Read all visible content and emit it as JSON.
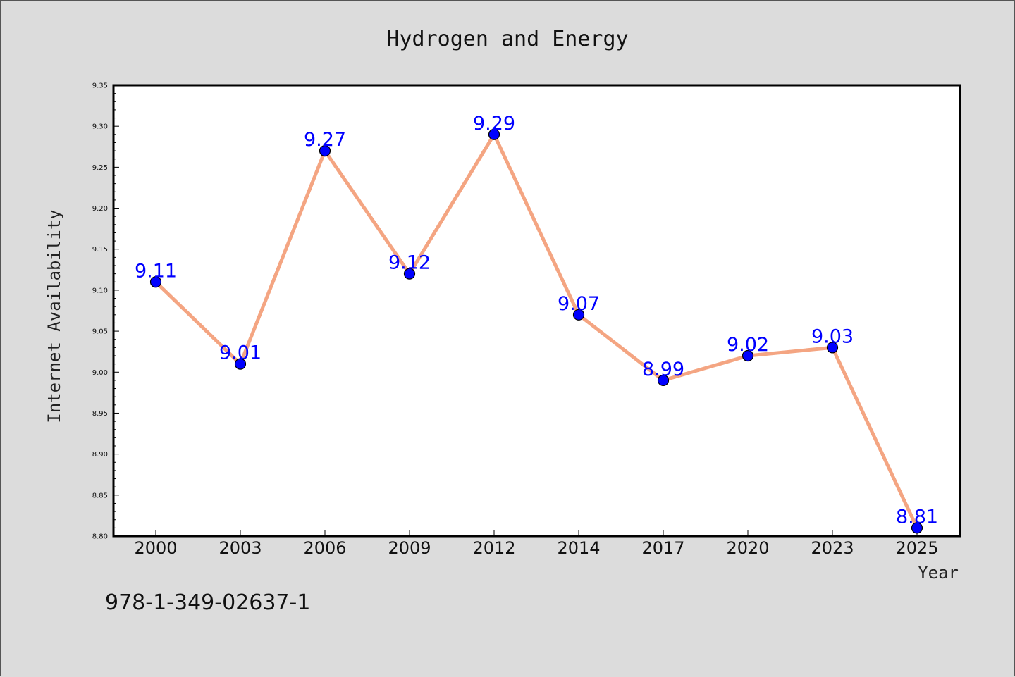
{
  "chart_data": {
    "type": "line",
    "title": "Hydrogen and Energy",
    "xlabel": "Year",
    "ylabel": "Internet Availability",
    "categories": [
      "2000",
      "2003",
      "2006",
      "2009",
      "2012",
      "2014",
      "2017",
      "2020",
      "2023",
      "2025"
    ],
    "series": [
      {
        "values": [
          9.11,
          9.01,
          9.27,
          9.12,
          9.29,
          9.07,
          8.99,
          9.02,
          9.03,
          8.81
        ],
        "data_labels": [
          "9.11",
          "9.01",
          "9.27",
          "9.12",
          "9.29",
          "9.07",
          "8.99",
          "9.02",
          "9.03",
          "8.81"
        ]
      }
    ],
    "ylim": [
      8.8,
      9.35
    ],
    "yticks": [
      "8.80",
      "8.85",
      "8.90",
      "8.95",
      "9.00",
      "9.05",
      "9.10",
      "9.15",
      "9.20",
      "9.25",
      "9.30",
      "9.35"
    ],
    "grid": false,
    "legend": "none",
    "line_color": "#f4a582",
    "marker_color": "#0000ff",
    "label_color": "#0000ff"
  },
  "annotation": "978-1-349-02637-1"
}
